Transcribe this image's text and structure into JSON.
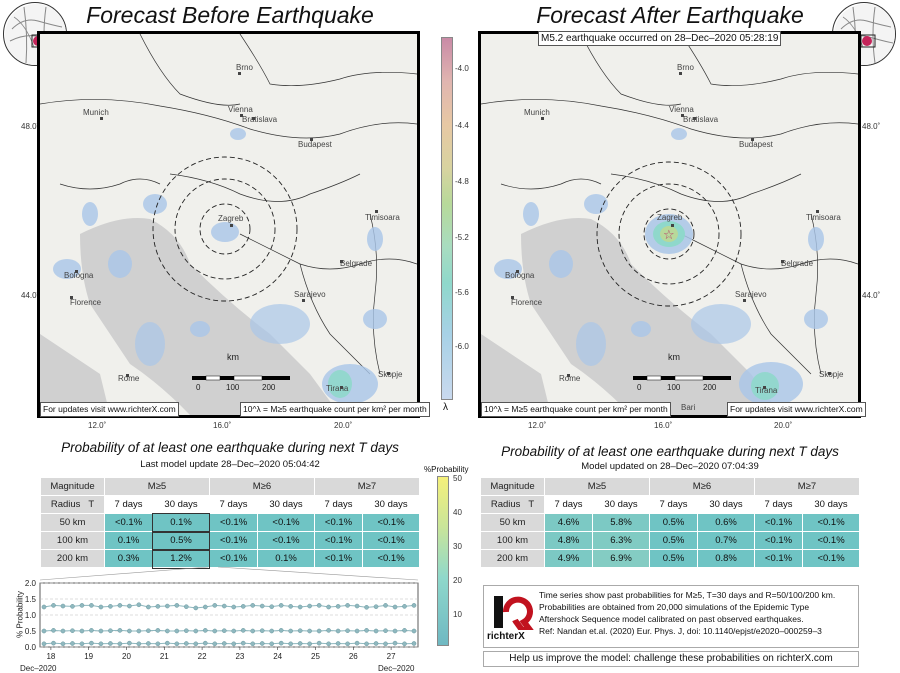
{
  "left_panel": {
    "title": "Forecast Before Earthquake",
    "footer_link": "For updates visit www.richterX.com",
    "footer_legend": "10^λ = M≥5 earthquake count per km² per month"
  },
  "right_panel": {
    "title": "Forecast After Earthquake",
    "event_banner": "M5.2 earthquake occurred on 28–Dec–2020 05:28:19",
    "footer_link": "For updates visit www.richterX.com",
    "footer_legend": "10^λ = M≥5 earthquake count per km² per month"
  },
  "map_labels": {
    "lat_top": "48.0˚",
    "lat_bottom": "44.0˚",
    "lon_left": "12.0˚",
    "lon_mid": "16.0˚",
    "lon_right": "20.0˚",
    "cities": [
      "Brno",
      "Munich",
      "Vienna",
      "Bratislava",
      "Budapest",
      "Zagreb",
      "Timisoara",
      "Bologna",
      "Belgrade",
      "Florence",
      "Sarajevo",
      "Rome",
      "Skopje",
      "Tirana"
    ],
    "scale_unit": "km",
    "scale_ticks": [
      "0",
      "100",
      "200"
    ],
    "bari": "Bari"
  },
  "colorbar": {
    "ticks": [
      "-4.0",
      "-4.4",
      "-4.8",
      "-5.2",
      "-5.6",
      "-6.0"
    ],
    "symbol": "λ",
    "colors": [
      "#c98aa6",
      "#e7c8a4",
      "#b7d99a",
      "#8fd8cb",
      "#a9c6e8"
    ]
  },
  "prob_left": {
    "title": "Probability of at least one earthquake during next T days",
    "subtitle": "Last model update 28–Dec–2020 05:04:42",
    "header": {
      "magnitude": "Magnitude",
      "radius": "Radius",
      "t": "T",
      "m5": "M≥5",
      "m6": "M≥6",
      "m7": "M≥7"
    },
    "periods": [
      "7 days",
      "30 days",
      "7 days",
      "30 days",
      "7 days",
      "30 days"
    ],
    "rows": [
      {
        "radius": "50 km",
        "values": [
          "<0.1%",
          "0.1%",
          "<0.1%",
          "<0.1%",
          "<0.1%",
          "<0.1%"
        ]
      },
      {
        "radius": "100 km",
        "values": [
          "0.1%",
          "0.5%",
          "<0.1%",
          "<0.1%",
          "<0.1%",
          "<0.1%"
        ]
      },
      {
        "radius": "200 km",
        "values": [
          "0.3%",
          "1.2%",
          "<0.1%",
          "0.1%",
          "<0.1%",
          "<0.1%"
        ]
      }
    ]
  },
  "prob_right": {
    "title": "Probability of at least one earthquake during next T days",
    "subtitle": "Model updated on 28–Dec–2020 07:04:39",
    "header": {
      "magnitude": "Magnitude",
      "radius": "Radius",
      "t": "T",
      "m5": "M≥5",
      "m6": "M≥6",
      "m7": "M≥7"
    },
    "periods": [
      "7 days",
      "30 days",
      "7 days",
      "30 days",
      "7 days",
      "30 days"
    ],
    "rows": [
      {
        "radius": "50 km",
        "values": [
          "4.6%",
          "5.8%",
          "0.5%",
          "0.6%",
          "<0.1%",
          "<0.1%"
        ]
      },
      {
        "radius": "100 km",
        "values": [
          "4.8%",
          "6.3%",
          "0.5%",
          "0.7%",
          "<0.1%",
          "<0.1%"
        ]
      },
      {
        "radius": "200 km",
        "values": [
          "4.9%",
          "6.9%",
          "0.5%",
          "0.8%",
          "<0.1%",
          "<0.1%"
        ]
      }
    ]
  },
  "prob_colorbar": {
    "title": "%Probability",
    "ticks": [
      "50",
      "40",
      "30",
      "20",
      "10"
    ]
  },
  "chart_data": {
    "type": "line",
    "ylabel": "% Probability",
    "ylim": [
      0,
      2
    ],
    "yticks": [
      "0.0",
      "0.5",
      "1.0",
      "1.5",
      "2.0"
    ],
    "xticks": [
      "18",
      "19",
      "20",
      "21",
      "22",
      "23",
      "24",
      "25",
      "26",
      "27"
    ],
    "x_start_label": "Dec–2020",
    "x_end_label": "Dec–2020",
    "series": [
      {
        "values": [
          1.25,
          1.3,
          1.28,
          1.27,
          1.3,
          1.3,
          1.25,
          1.27,
          1.3,
          1.28,
          1.32,
          1.25,
          1.27,
          1.28,
          1.3,
          1.26,
          1.22,
          1.25,
          1.3,
          1.28,
          1.25,
          1.27,
          1.3,
          1.28,
          1.26,
          1.3,
          1.27,
          1.25,
          1.28,
          1.3,
          1.25,
          1.27,
          1.3,
          1.28,
          1.24,
          1.26,
          1.3,
          1.25,
          1.27,
          1.3
        ]
      },
      {
        "values": [
          0.5,
          0.52,
          0.5,
          0.51,
          0.5,
          0.52,
          0.5,
          0.51,
          0.52,
          0.5,
          0.5,
          0.51,
          0.52,
          0.5,
          0.5,
          0.51,
          0.5,
          0.52,
          0.5,
          0.51,
          0.5,
          0.52,
          0.5,
          0.51,
          0.5,
          0.52,
          0.5,
          0.51,
          0.5,
          0.5,
          0.52,
          0.5,
          0.51,
          0.5,
          0.52,
          0.5,
          0.51,
          0.5,
          0.52,
          0.5
        ]
      },
      {
        "values": [
          0.1,
          0.12,
          0.1,
          0.11,
          0.1,
          0.12,
          0.1,
          0.11,
          0.1,
          0.12,
          0.1,
          0.11,
          0.1,
          0.12,
          0.1,
          0.11,
          0.1,
          0.12,
          0.1,
          0.11,
          0.1,
          0.12,
          0.1,
          0.11,
          0.1,
          0.12,
          0.1,
          0.11,
          0.1,
          0.12,
          0.1,
          0.11,
          0.1,
          0.12,
          0.1,
          0.11,
          0.1,
          0.12,
          0.1,
          0.11
        ]
      }
    ],
    "color": "#8fb8bf"
  },
  "info_box": {
    "logo_text": "richterX",
    "lines": [
      "Time series show past probabilities for M≥5, T=30 days and R=50/100/200 km.",
      "Probabilities are obtained from 20,000 simulations of the Epidemic Type",
      "Aftershock Sequence model calibrated on past observed earthquakes.",
      "Ref: Nandan et.al. (2020) Eur. Phys. J, doi: 10.1140/epjst/e2020–000259–3"
    ],
    "help": "Help us improve the model: challenge these probabilities on richterX.com"
  }
}
